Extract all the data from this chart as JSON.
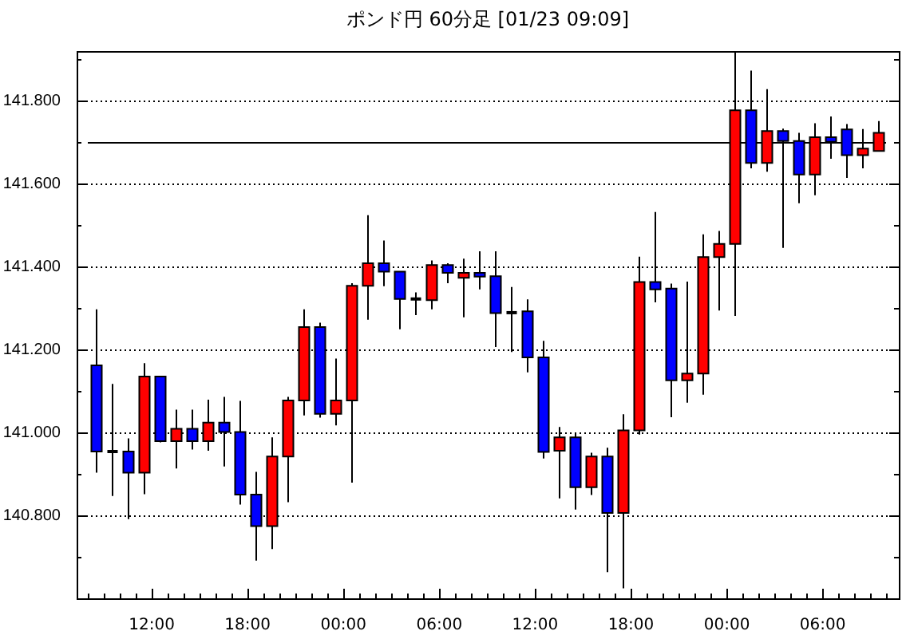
{
  "chart_data": {
    "type": "candlestick",
    "title": "ポンド円 60分足 [01/23 09:09]",
    "x": [
      "--01-21T08:30",
      "--01-21T09:30",
      "--01-21T10:30",
      "--01-21T11:30",
      "--01-21T12:30",
      "--01-21T13:30",
      "--01-21T14:30",
      "--01-21T15:30",
      "--01-21T16:30",
      "--01-21T17:30",
      "--01-21T18:30",
      "--01-21T19:30",
      "--01-21T20:30",
      "--01-21T21:30",
      "--01-21T22:30",
      "--01-21T23:30",
      "--01-22T00:30",
      "--01-22T01:30",
      "--01-22T02:30",
      "--01-22T03:30",
      "--01-22T04:30",
      "--01-22T05:30",
      "--01-22T06:30",
      "--01-22T07:30",
      "--01-22T08:30",
      "--01-22T09:30",
      "--01-22T10:30",
      "--01-22T11:30",
      "--01-22T12:30",
      "--01-22T13:30",
      "--01-22T14:30",
      "--01-22T15:30",
      "--01-22T16:30",
      "--01-22T17:30",
      "--01-22T18:30",
      "--01-22T19:30",
      "--01-22T20:30",
      "--01-22T21:30",
      "--01-22T22:30",
      "--01-22T23:30",
      "--01-23T00:30",
      "--01-23T01:30",
      "--01-23T02:30",
      "--01-23T03:30",
      "--01-23T04:30",
      "--01-23T05:30",
      "--01-23T06:30",
      "--01-23T07:30",
      "--01-23T08:30",
      "--01-23T09:30"
    ],
    "ohlc": [
      [
        141.162,
        141.297,
        140.903,
        140.954
      ],
      [
        140.954,
        141.117,
        140.847,
        140.954
      ],
      [
        140.954,
        140.986,
        140.791,
        140.903
      ],
      [
        140.903,
        141.167,
        140.851,
        141.135
      ],
      [
        141.135,
        141.135,
        140.976,
        140.979
      ],
      [
        140.979,
        141.055,
        140.913,
        141.009
      ],
      [
        141.009,
        141.055,
        140.959,
        140.979
      ],
      [
        140.979,
        141.079,
        140.956,
        141.024
      ],
      [
        141.024,
        141.086,
        140.918,
        141.001
      ],
      [
        141.001,
        141.076,
        140.826,
        140.85
      ],
      [
        140.85,
        140.905,
        140.691,
        140.774
      ],
      [
        140.774,
        140.988,
        140.719,
        140.942
      ],
      [
        140.942,
        141.086,
        140.832,
        141.077
      ],
      [
        141.077,
        141.297,
        141.041,
        141.254
      ],
      [
        141.254,
        141.265,
        141.036,
        141.045
      ],
      [
        141.045,
        141.178,
        141.017,
        141.077
      ],
      [
        141.077,
        141.36,
        140.879,
        141.354
      ],
      [
        141.354,
        141.524,
        141.272,
        141.408
      ],
      [
        141.408,
        141.463,
        141.353,
        141.388
      ],
      [
        141.388,
        141.388,
        141.249,
        141.322
      ],
      [
        141.322,
        141.338,
        141.283,
        141.322
      ],
      [
        141.319,
        141.415,
        141.297,
        141.404
      ],
      [
        141.404,
        141.408,
        141.36,
        141.385
      ],
      [
        141.373,
        141.419,
        141.278,
        141.385
      ],
      [
        141.385,
        141.437,
        141.345,
        141.376
      ],
      [
        141.377,
        141.437,
        141.206,
        141.288
      ],
      [
        141.289,
        141.351,
        141.194,
        141.289
      ],
      [
        141.292,
        141.321,
        141.145,
        141.181
      ],
      [
        141.181,
        141.221,
        140.937,
        140.953
      ],
      [
        140.956,
        141.013,
        140.841,
        140.988
      ],
      [
        140.988,
        141.0,
        140.814,
        140.868
      ],
      [
        140.868,
        140.951,
        140.849,
        140.942
      ],
      [
        140.942,
        140.963,
        140.663,
        140.806
      ],
      [
        140.806,
        141.044,
        140.624,
        141.005
      ],
      [
        141.005,
        141.424,
        140.995,
        141.363
      ],
      [
        141.363,
        141.532,
        141.314,
        141.345
      ],
      [
        141.347,
        141.359,
        141.037,
        141.126
      ],
      [
        141.126,
        141.364,
        141.072,
        141.142
      ],
      [
        141.142,
        141.478,
        141.091,
        141.423
      ],
      [
        141.423,
        141.486,
        141.294,
        141.455
      ],
      [
        141.455,
        141.92,
        141.281,
        141.777
      ],
      [
        141.777,
        141.873,
        141.637,
        141.65
      ],
      [
        141.65,
        141.828,
        141.629,
        141.727
      ],
      [
        141.727,
        141.733,
        141.445,
        141.703
      ],
      [
        141.703,
        141.723,
        141.553,
        141.622
      ],
      [
        141.622,
        141.746,
        141.572,
        141.712
      ],
      [
        141.712,
        141.762,
        141.66,
        141.701
      ],
      [
        141.731,
        141.744,
        141.614,
        141.669
      ],
      [
        141.669,
        141.732,
        141.637,
        141.685
      ],
      [
        141.679,
        141.751,
        141.679,
        141.723
      ]
    ],
    "colors": [
      "#0000ff",
      "#000000",
      "#0000ff",
      "#ff0000",
      "#0000ff",
      "#ff0000",
      "#0000ff",
      "#ff0000",
      "#0000ff",
      "#0000ff",
      "#0000ff",
      "#ff0000",
      "#ff0000",
      "#ff0000",
      "#0000ff",
      "#ff0000",
      "#ff0000",
      "#ff0000",
      "#0000ff",
      "#0000ff",
      "#000000",
      "#ff0000",
      "#0000ff",
      "#ff0000",
      "#0000ff",
      "#0000ff",
      "#000000",
      "#0000ff",
      "#0000ff",
      "#ff0000",
      "#0000ff",
      "#ff0000",
      "#0000ff",
      "#ff0000",
      "#ff0000",
      "#0000ff",
      "#0000ff",
      "#ff0000",
      "#ff0000",
      "#ff0000",
      "#ff0000",
      "#0000ff",
      "#ff0000",
      "#0000ff",
      "#0000ff",
      "#ff0000",
      "#0000ff",
      "#0000ff",
      "#ff0000",
      "#ff0000"
    ],
    "xlim": [
      "--01-21T07:18",
      "--01-23T10:46"
    ],
    "xticks": [
      {
        "value": "--01-21T08:00",
        "label": null
      },
      {
        "value": "--01-21T09:00",
        "label": null
      },
      {
        "value": "--01-21T10:00",
        "label": null
      },
      {
        "value": "--01-21T11:00",
        "label": null
      },
      {
        "value": "--01-21T12:00",
        "label": "12:00"
      },
      {
        "value": "--01-21T13:00",
        "label": null
      },
      {
        "value": "--01-21T14:00",
        "label": null
      },
      {
        "value": "--01-21T15:00",
        "label": null
      },
      {
        "value": "--01-21T16:00",
        "label": null
      },
      {
        "value": "--01-21T17:00",
        "label": null
      },
      {
        "value": "--01-21T18:00",
        "label": "18:00"
      },
      {
        "value": "--01-21T19:00",
        "label": null
      },
      {
        "value": "--01-21T20:00",
        "label": null
      },
      {
        "value": "--01-21T21:00",
        "label": null
      },
      {
        "value": "--01-21T22:00",
        "label": null
      },
      {
        "value": "--01-21T23:00",
        "label": null
      },
      {
        "value": "--01-22T00:00",
        "label": "00:00"
      },
      {
        "value": "--01-22T01:00",
        "label": null
      },
      {
        "value": "--01-22T02:00",
        "label": null
      },
      {
        "value": "--01-22T03:00",
        "label": null
      },
      {
        "value": "--01-22T04:00",
        "label": null
      },
      {
        "value": "--01-22T05:00",
        "label": null
      },
      {
        "value": "--01-22T06:00",
        "label": "06:00"
      },
      {
        "value": "--01-22T07:00",
        "label": null
      },
      {
        "value": "--01-22T08:00",
        "label": null
      },
      {
        "value": "--01-22T09:00",
        "label": null
      },
      {
        "value": "--01-22T10:00",
        "label": null
      },
      {
        "value": "--01-22T11:00",
        "label": null
      },
      {
        "value": "--01-22T12:00",
        "label": "12:00"
      },
      {
        "value": "--01-22T13:00",
        "label": null
      },
      {
        "value": "--01-22T14:00",
        "label": null
      },
      {
        "value": "--01-22T15:00",
        "label": null
      },
      {
        "value": "--01-22T16:00",
        "label": null
      },
      {
        "value": "--01-22T17:00",
        "label": null
      },
      {
        "value": "--01-22T18:00",
        "label": "18:00"
      },
      {
        "value": "--01-22T19:00",
        "label": null
      },
      {
        "value": "--01-22T20:00",
        "label": null
      },
      {
        "value": "--01-22T21:00",
        "label": null
      },
      {
        "value": "--01-22T22:00",
        "label": null
      },
      {
        "value": "--01-22T23:00",
        "label": null
      },
      {
        "value": "--01-23T00:00",
        "label": "00:00"
      },
      {
        "value": "--01-23T01:00",
        "label": null
      },
      {
        "value": "--01-23T02:00",
        "label": null
      },
      {
        "value": "--01-23T03:00",
        "label": null
      },
      {
        "value": "--01-23T04:00",
        "label": null
      },
      {
        "value": "--01-23T05:00",
        "label": null
      },
      {
        "value": "--01-23T06:00",
        "label": "06:00"
      },
      {
        "value": "--01-23T07:00",
        "label": null
      },
      {
        "value": "--01-23T08:00",
        "label": null
      },
      {
        "value": "--01-23T09:00",
        "label": null
      },
      {
        "value": "--01-23T10:00",
        "label": null
      }
    ],
    "ylim": [
      140.6,
      141.92
    ],
    "yticks": [
      {
        "value": 140.7,
        "label": null
      },
      {
        "value": 140.8,
        "label": "140.800"
      },
      {
        "value": 140.9,
        "label": null
      },
      {
        "value": 141.0,
        "label": "141.000"
      },
      {
        "value": 141.1,
        "label": null
      },
      {
        "value": 141.2,
        "label": "141.200"
      },
      {
        "value": 141.3,
        "label": null
      },
      {
        "value": 141.4,
        "label": "141.400"
      },
      {
        "value": 141.5,
        "label": null
      },
      {
        "value": 141.6,
        "label": "141.600"
      },
      {
        "value": 141.7,
        "label": null
      },
      {
        "value": 141.8,
        "label": "141.800"
      },
      {
        "value": 141.9,
        "label": null
      }
    ],
    "grid": "y",
    "ref_lines": [
      {
        "axis": "y",
        "value": 141.7,
        "color": "#000000"
      }
    ]
  }
}
